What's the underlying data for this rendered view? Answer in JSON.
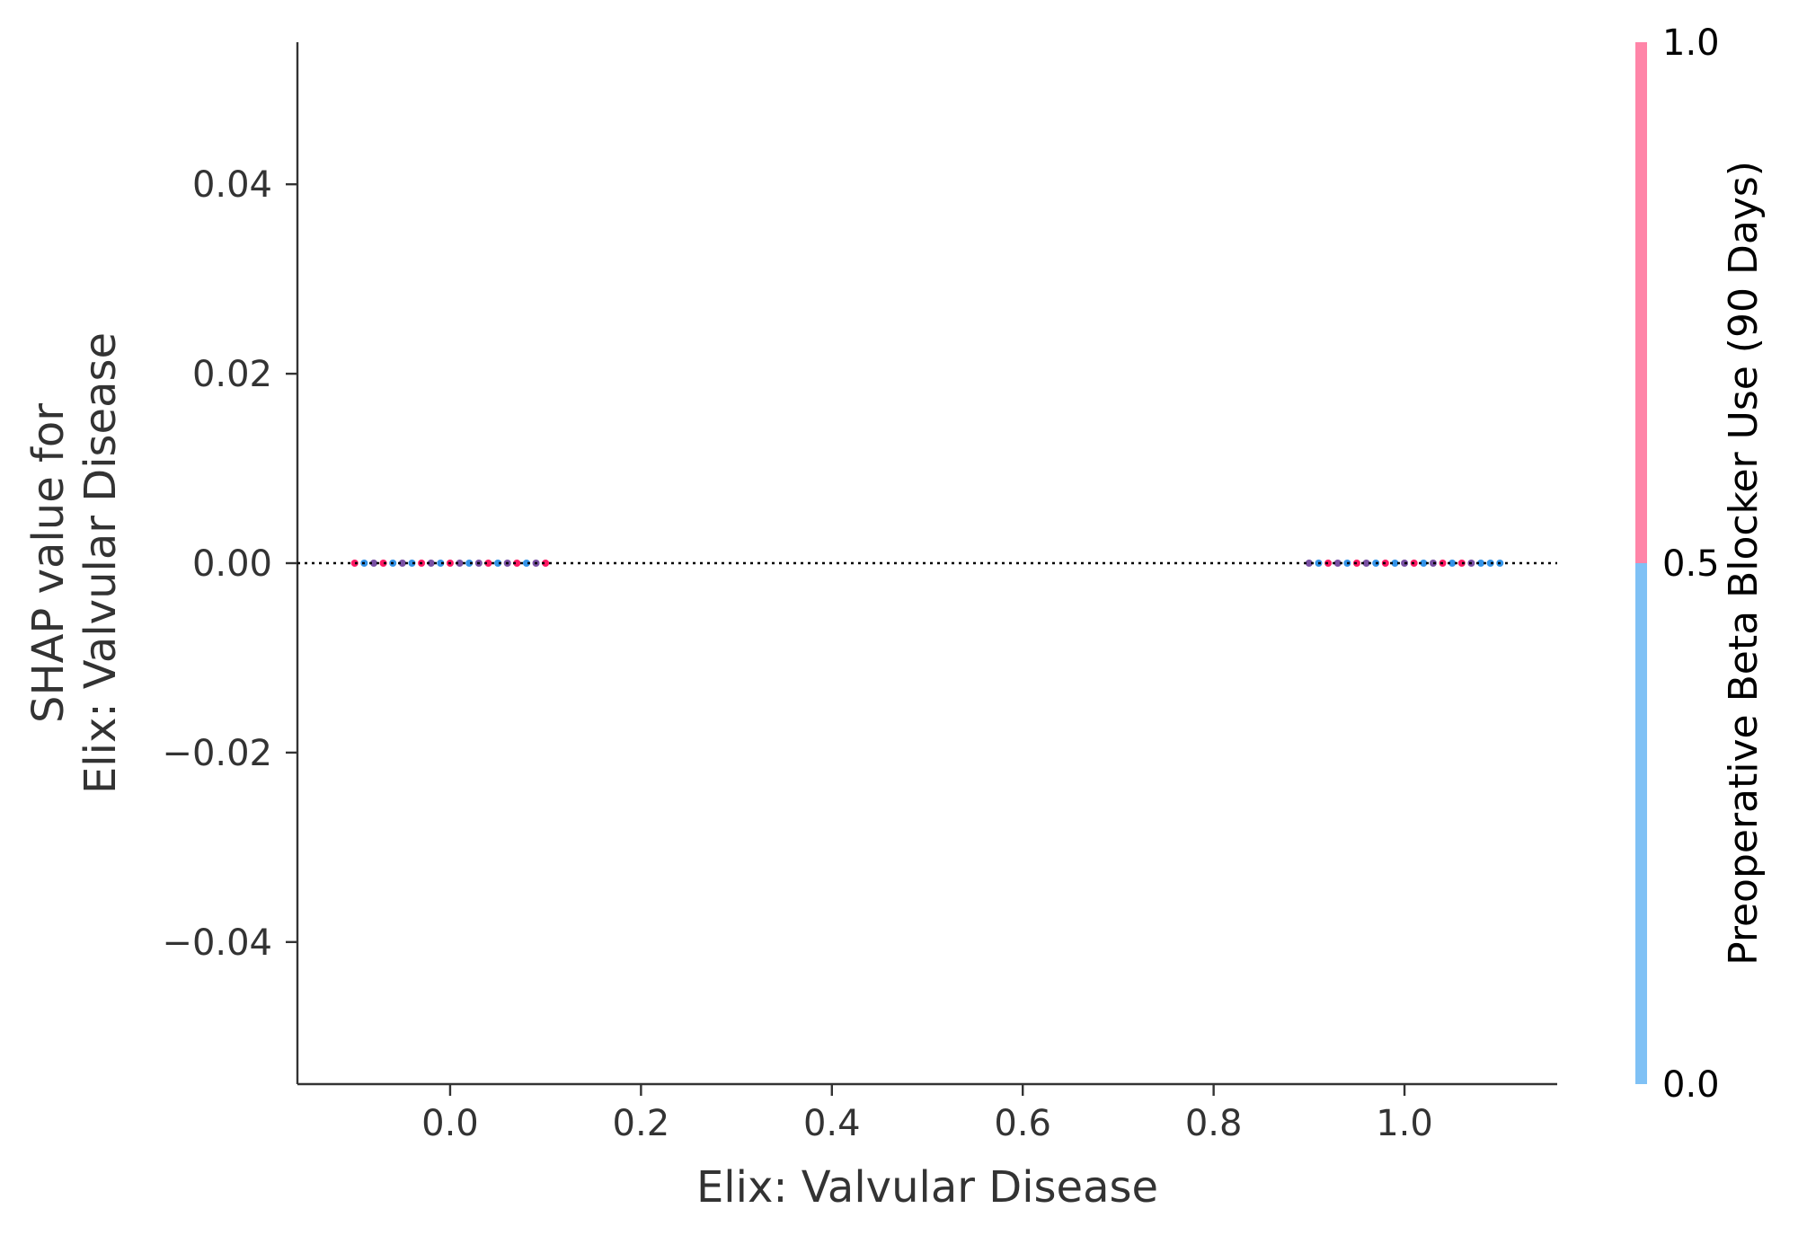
{
  "chart_data": {
    "type": "scatter",
    "title": "",
    "xlabel": "Elix: Valvular Disease",
    "ylabel_lines": [
      "SHAP value for",
      "Elix: Valvular Disease"
    ],
    "xlim": [
      -0.16,
      1.16
    ],
    "ylim": [
      -0.055,
      0.055
    ],
    "xticks": [
      0.0,
      0.2,
      0.4,
      0.6,
      0.8,
      1.0
    ],
    "xtick_labels": [
      "0.0",
      "0.2",
      "0.4",
      "0.6",
      "0.8",
      "1.0"
    ],
    "yticks": [
      0.04,
      0.02,
      0.0,
      -0.02,
      -0.04
    ],
    "ytick_labels": [
      "0.04",
      "0.02",
      "0.00",
      "−0.02",
      "−0.04"
    ],
    "reference_line": {
      "y": 0.0,
      "style": "dotted",
      "color": "#000000"
    },
    "grid": false,
    "colorbar": {
      "label": "Preoperative Beta Blocker Use (90 Days)",
      "ticks": [
        0.0,
        0.5,
        1.0
      ],
      "tick_labels": [
        "0.0",
        "0.5",
        "1.0"
      ],
      "low_color": "#7fc1f5",
      "high_color": "#ff85a8"
    },
    "point_colors": {
      "low": "#1e88e5",
      "high": "#ff0052",
      "mixed": "#6a3d9a"
    },
    "groups": [
      {
        "x_center": 0.0,
        "jitter": 0.1,
        "y": 0.0,
        "colors": [
          "high",
          "low",
          "mixed",
          "high",
          "low",
          "mixed",
          "low",
          "high",
          "mixed",
          "low",
          "high",
          "mixed",
          "low",
          "mixed",
          "high",
          "low",
          "mixed",
          "high",
          "low",
          "mixed",
          "high"
        ]
      },
      {
        "x_center": 1.0,
        "jitter": 0.1,
        "y": 0.0,
        "colors": [
          "mixed",
          "low",
          "high",
          "mixed",
          "low",
          "high",
          "mixed",
          "low",
          "high",
          "low",
          "mixed",
          "high",
          "low",
          "mixed",
          "high",
          "low",
          "high",
          "mixed",
          "low",
          "low",
          "low"
        ]
      }
    ]
  }
}
